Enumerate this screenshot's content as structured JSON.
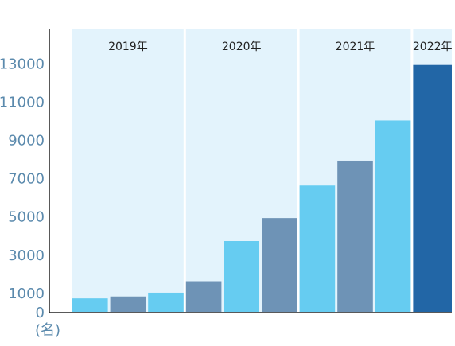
{
  "chart_data": {
    "type": "bar",
    "title": "",
    "xlabel": "",
    "ylabel": "",
    "unit_label": "(名)",
    "ylim": [
      0,
      14800
    ],
    "yticks": [
      0,
      1000,
      3000,
      5000,
      7000,
      9000,
      11000,
      13000
    ],
    "grid": false,
    "year_groups": [
      {
        "label": "2019年",
        "bars": 3
      },
      {
        "label": "2020年",
        "bars": 3
      },
      {
        "label": "2021年",
        "bars": 3
      },
      {
        "label": "2022年",
        "bars": 1
      }
    ],
    "values": [
      700,
      800,
      1000,
      1600,
      3700,
      4900,
      6600,
      7900,
      10000,
      12900
    ],
    "bar_color_keys": [
      "light",
      "mid",
      "light",
      "mid",
      "light",
      "mid",
      "light",
      "mid",
      "light",
      "dark"
    ]
  },
  "colors": {
    "light": "#66ccf1",
    "mid": "#6e93b6",
    "dark": "#2266a6",
    "band_background": "#e3f3fc",
    "axis": "#222222",
    "tick_label": "#5b8aad",
    "year_label": "#222222"
  }
}
